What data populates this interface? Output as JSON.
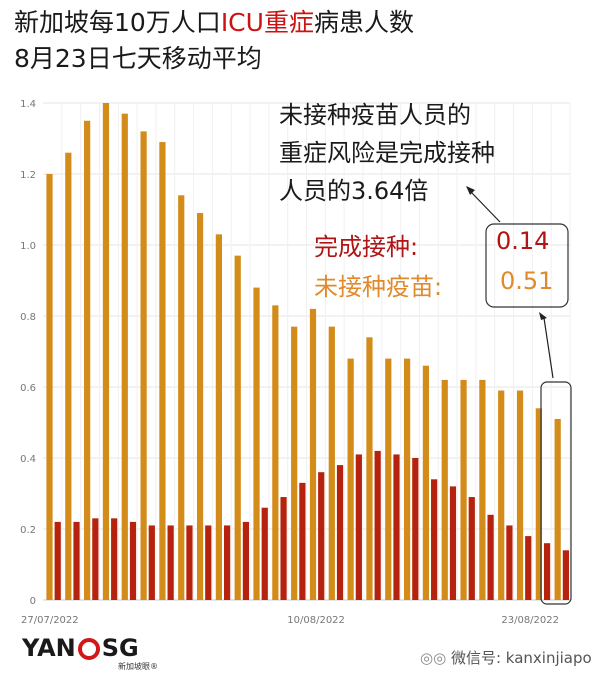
{
  "header": {
    "title_pre": "新加坡每10万人口",
    "title_red": "ICU重症",
    "title_post": "病患人数",
    "subtitle": "8月23日七天移动平均"
  },
  "annotation": {
    "line1": "未接种疫苗人员的",
    "line2": "重症风险是完成接种",
    "line3": "人员的3.64倍"
  },
  "legend": {
    "vaccinated_label": "完成接种:",
    "vaccinated_value": "0.14",
    "unvaccinated_label": "未接种疫苗:",
    "unvaccinated_value": "0.51"
  },
  "logo": {
    "left": "YAN",
    "right": "SG",
    "sub": "新加坡眼®"
  },
  "wechat": "微信号: kanxinjiapo",
  "colors": {
    "vaccinated": "#b5220e",
    "unvaccinated": "#d38b1a",
    "annotation_red": "#b01414",
    "annotation_orange": "#e08a2c"
  },
  "chart_data": {
    "type": "bar",
    "x_tick_labels": [
      "27/07/2022",
      "10/08/2022",
      "23/08/2022"
    ],
    "ylim": [
      0,
      1.4
    ],
    "yticks": [
      0,
      0.2,
      0.4,
      0.6,
      0.8,
      1.0,
      1.2,
      1.4
    ],
    "grid": true,
    "series": [
      {
        "name": "未接种疫苗",
        "color": "#d38b1a",
        "values": [
          1.2,
          1.26,
          1.35,
          1.4,
          1.37,
          1.32,
          1.29,
          1.14,
          1.09,
          1.03,
          0.97,
          0.88,
          0.83,
          0.77,
          0.82,
          0.77,
          0.68,
          0.74,
          0.68,
          0.68,
          0.66,
          0.62,
          0.62,
          0.62,
          0.59,
          0.59,
          0.54,
          0.51
        ]
      },
      {
        "name": "完成接种",
        "color": "#b5220e",
        "values": [
          0.22,
          0.22,
          0.23,
          0.23,
          0.22,
          0.21,
          0.21,
          0.21,
          0.21,
          0.21,
          0.22,
          0.26,
          0.29,
          0.33,
          0.36,
          0.38,
          0.41,
          0.42,
          0.41,
          0.4,
          0.34,
          0.32,
          0.29,
          0.24,
          0.21,
          0.18,
          0.16,
          0.14
        ]
      }
    ]
  }
}
